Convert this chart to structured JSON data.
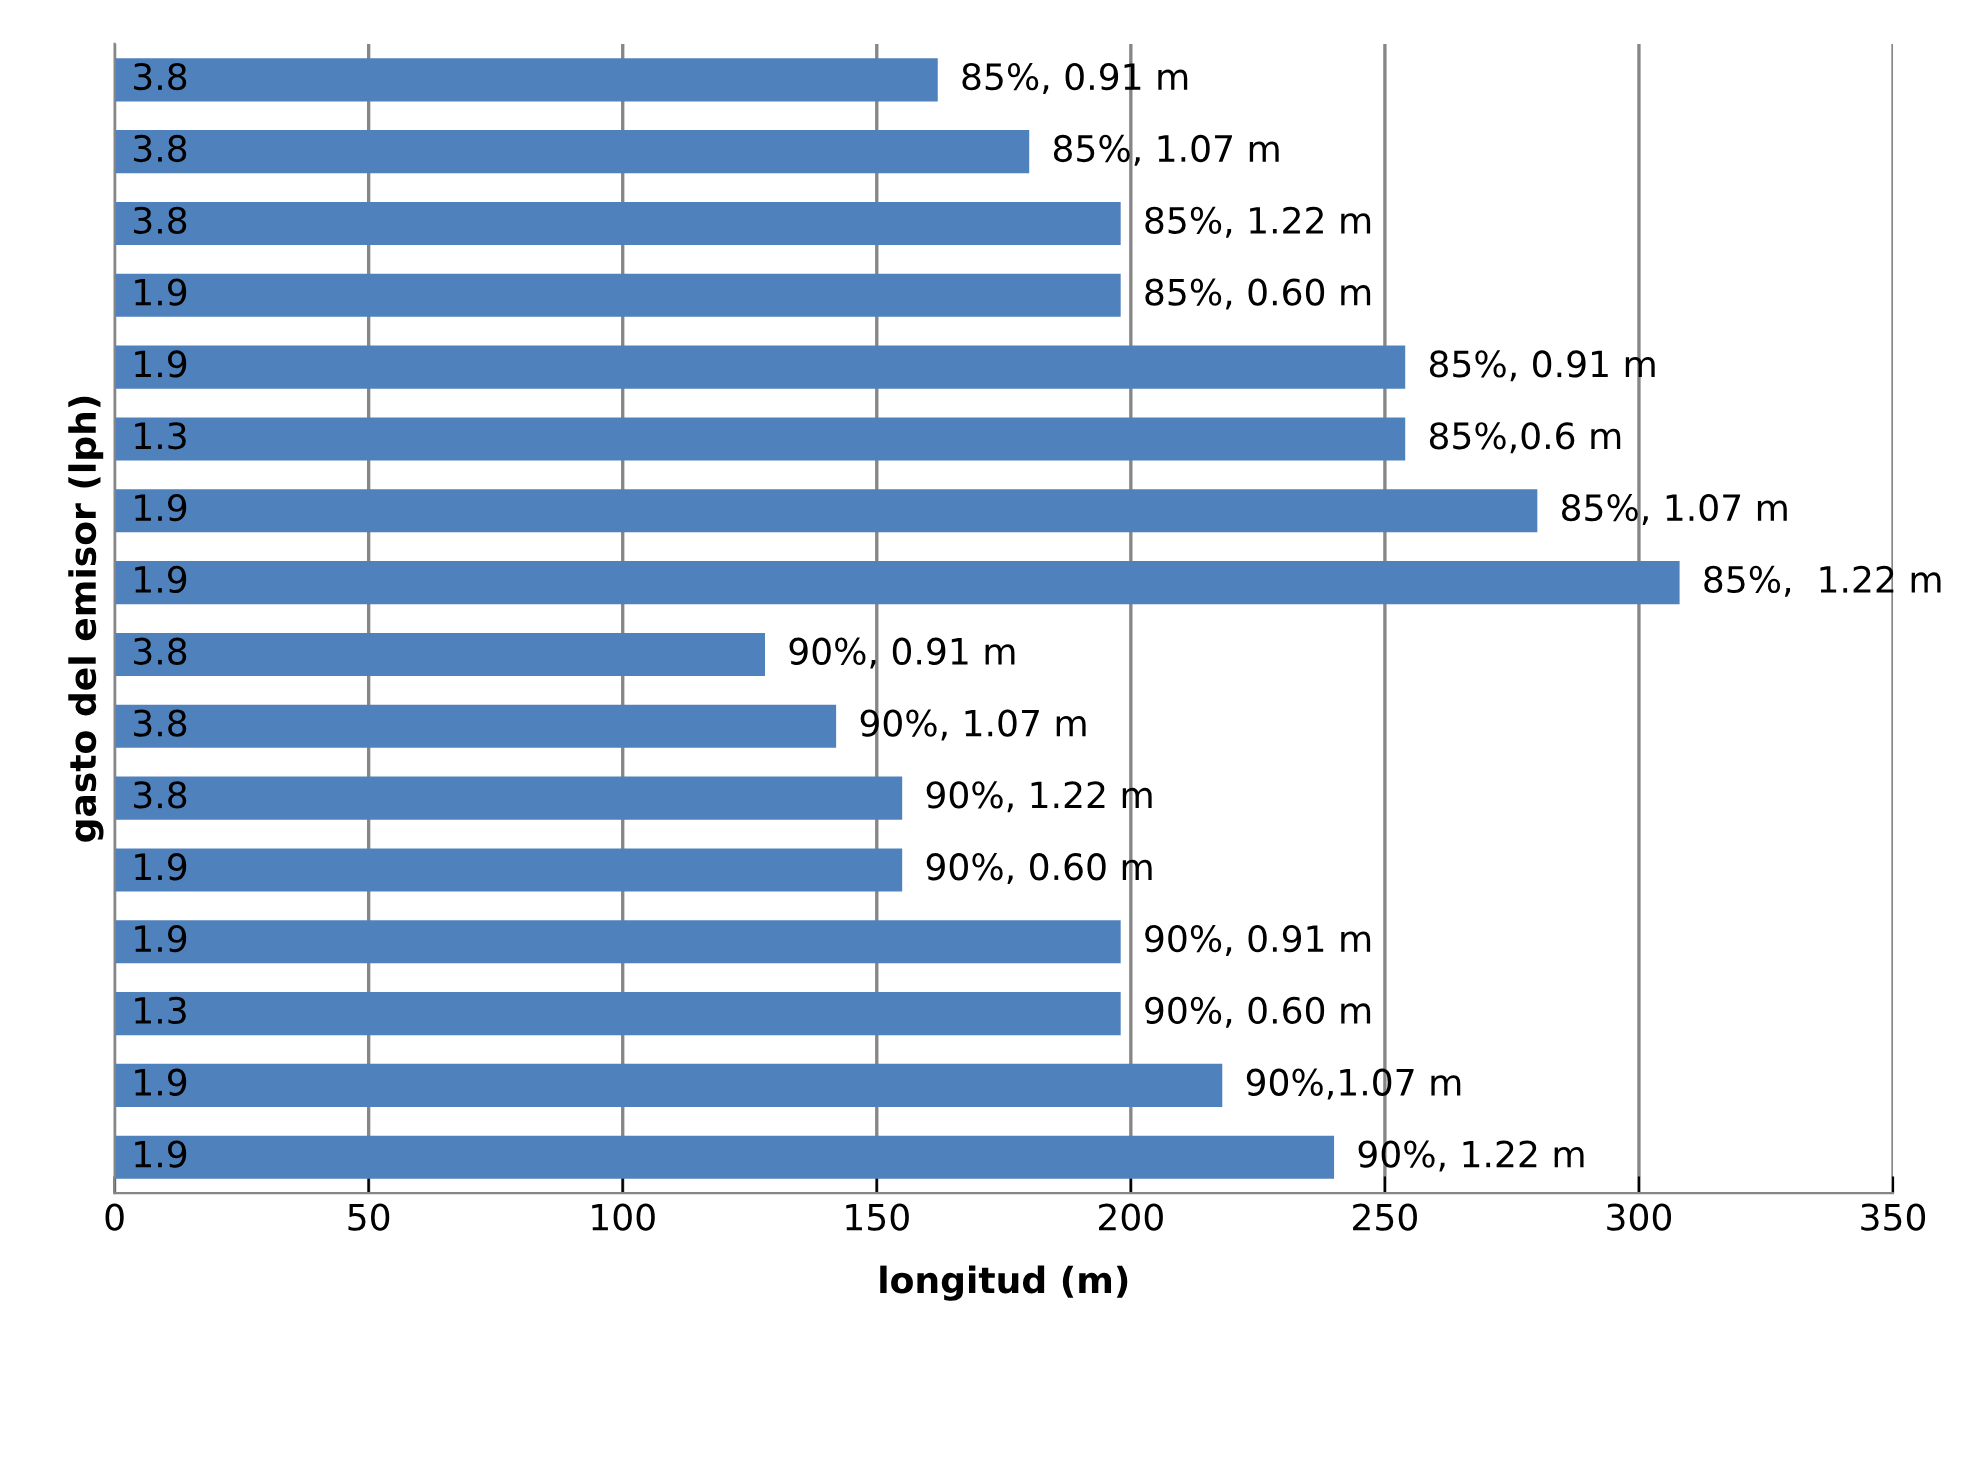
{
  "chart_data": {
    "type": "bar",
    "orientation": "horizontal",
    "xlabel": "longitud (m)",
    "ylabel": "gasto del emisor (lph)",
    "categories": [
      "3.8",
      "3.8",
      "3.8",
      "1.9",
      "1.9",
      "1.3",
      "1.9",
      "1.9",
      "3.8",
      "3.8",
      "3.8",
      "1.9",
      "1.9",
      "1.3",
      "1.9",
      "1.9"
    ],
    "values": [
      162,
      180,
      198,
      198,
      254,
      254,
      280,
      308,
      128,
      142,
      155,
      155,
      198,
      198,
      218,
      240
    ],
    "annotations": [
      "85%, 0.91 m",
      "85%, 1.07 m",
      "85%, 1.22 m",
      "85%, 0.60 m",
      "85%, 0.91 m",
      "85%,0.6 m",
      "85%, 1.07 m",
      "85%,  1.22 m",
      "90%, 0.91 m",
      "90%, 1.07 m",
      "90%, 1.22 m",
      "90%, 0.60 m",
      "90%, 0.91 m",
      "90%, 0.60 m",
      "90%,1.07 m",
      "90%, 1.22 m"
    ],
    "color": "#4f81bd",
    "xlim": [
      0,
      350
    ],
    "xticks": [
      0,
      50,
      100,
      150,
      200,
      250,
      300,
      350
    ],
    "grid": "x",
    "legend": false
  }
}
